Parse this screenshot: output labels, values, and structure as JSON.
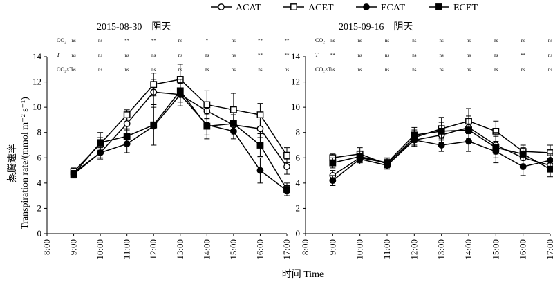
{
  "chart_data": {
    "type": "line",
    "xlabel": "时间 Time",
    "ylabel_cn": "蒸腾速率",
    "ylabel_en": "Transpiration rate/(mmol m⁻² s⁻¹)",
    "x_ticks": [
      "8:00",
      "9:00",
      "10:00",
      "11:00",
      "12:00",
      "13:00",
      "14:00",
      "15:00",
      "16:00",
      "17:00"
    ],
    "y_ticks": [
      "0",
      "2",
      "4",
      "6",
      "8",
      "10",
      "12",
      "14"
    ],
    "ylim": [
      0,
      14
    ],
    "legend": {
      "placement": "top",
      "entries": [
        {
          "name": "ACAT",
          "marker": "open-circle"
        },
        {
          "name": "ACET",
          "marker": "open-square"
        },
        {
          "name": "ECAT",
          "marker": "filled-circle"
        },
        {
          "name": "ECET",
          "marker": "filled-square"
        }
      ]
    },
    "panels": [
      {
        "title": "2015-08-30　阴天",
        "x": [
          "9:00",
          "10:00",
          "11:00",
          "12:00",
          "13:00",
          "14:00",
          "15:00",
          "16:00",
          "17:00"
        ],
        "sig_rows": [
          {
            "label": "CO₂",
            "values": [
              "ns",
              "ns",
              "**",
              "**",
              "ns",
              "*",
              "ns",
              "**",
              "**"
            ]
          },
          {
            "label": "T",
            "values": [
              "ns",
              "ns",
              "ns",
              "ns",
              "ns",
              "ns",
              "ns",
              "**",
              "**"
            ]
          },
          {
            "label": "CO₂×T",
            "values": [
              "ns",
              "ns",
              "ns",
              "ns",
              "ns",
              "ns",
              "ns",
              "ns",
              "ns"
            ]
          }
        ],
        "series": [
          {
            "name": "ACAT",
            "values": [
              4.8,
              6.4,
              8.7,
              11.2,
              11.0,
              9.7,
              8.6,
              8.3,
              5.3
            ],
            "err": [
              0.3,
              0.4,
              0.5,
              1.0,
              0.9,
              0.7,
              0.8,
              0.7,
              0.6
            ]
          },
          {
            "name": "ACET",
            "values": [
              4.9,
              7.1,
              9.4,
              11.8,
              12.2,
              10.2,
              9.8,
              9.4,
              6.2
            ],
            "err": [
              0.3,
              0.5,
              0.4,
              0.9,
              1.2,
              1.1,
              1.3,
              0.9,
              0.6
            ]
          },
          {
            "name": "ECAT",
            "values": [
              4.7,
              6.4,
              7.1,
              8.5,
              11.0,
              8.6,
              8.1,
              5.0,
              3.4
            ],
            "err": [
              0.3,
              0.5,
              0.7,
              1.5,
              0.9,
              0.8,
              0.6,
              1.0,
              0.4
            ]
          },
          {
            "name": "ECET",
            "values": [
              4.7,
              7.2,
              7.7,
              8.6,
              11.3,
              8.5,
              8.7,
              7.0,
              3.5
            ],
            "err": [
              0.3,
              0.8,
              0.6,
              1.6,
              0.9,
              1.0,
              0.7,
              0.9,
              0.5
            ]
          }
        ]
      },
      {
        "title": "2015-09-16　阴天",
        "x": [
          "9:00",
          "10:00",
          "11:00",
          "12:00",
          "13:00",
          "14:00",
          "15:00",
          "16:00",
          "17:00"
        ],
        "sig_rows": [
          {
            "label": "CO₂",
            "values": [
              "ns",
              "ns",
              "ns",
              "ns",
              "ns",
              "ns",
              "ns",
              "ns",
              "ns"
            ]
          },
          {
            "label": "T",
            "values": [
              "**",
              "ns",
              "ns",
              "ns",
              "ns",
              "ns",
              "ns",
              "**",
              "ns"
            ]
          },
          {
            "label": "CO₂×T",
            "values": [
              "ns",
              "ns",
              "ns",
              "ns",
              "ns",
              "ns",
              "ns",
              "ns",
              "ns"
            ]
          }
        ],
        "series": [
          {
            "name": "ACAT",
            "values": [
              4.6,
              6.0,
              5.6,
              7.4,
              7.8,
              8.4,
              7.0,
              6.0,
              5.4
            ],
            "err": [
              0.4,
              0.4,
              0.4,
              0.5,
              0.6,
              0.9,
              0.7,
              0.5,
              0.4
            ]
          },
          {
            "name": "ACET",
            "values": [
              6.0,
              6.3,
              5.5,
              7.6,
              8.3,
              8.9,
              8.1,
              6.5,
              6.4
            ],
            "err": [
              0.3,
              0.5,
              0.3,
              0.6,
              0.9,
              1.0,
              0.8,
              0.5,
              0.6
            ]
          },
          {
            "name": "ECAT",
            "values": [
              4.2,
              5.9,
              5.4,
              7.4,
              7.0,
              7.3,
              6.5,
              5.3,
              5.8
            ],
            "err": [
              0.4,
              0.4,
              0.3,
              0.5,
              0.5,
              0.8,
              0.5,
              0.7,
              0.5
            ]
          },
          {
            "name": "ECET",
            "values": [
              5.6,
              6.1,
              5.6,
              7.8,
              8.1,
              8.2,
              6.8,
              6.3,
              5.1
            ],
            "err": [
              0.4,
              0.4,
              0.3,
              0.6,
              0.7,
              0.9,
              1.2,
              0.5,
              0.6
            ]
          }
        ]
      }
    ]
  }
}
